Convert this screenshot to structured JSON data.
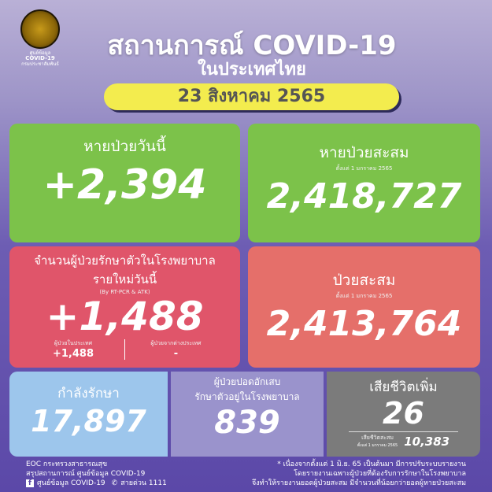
{
  "logo": {
    "line1": "ศูนย์ข้อมูล",
    "line2": "COVID-19",
    "line3": "กรมประชาสัมพันธ์"
  },
  "header": {
    "title": "สถานการณ์ COVID-19",
    "subtitle": "ในประเทศไทย",
    "date": "23 สิงหาคม 2565"
  },
  "recovered_today": {
    "label": "หายป่วยวันนี้",
    "value": "+2,394"
  },
  "recovered_total": {
    "label": "หายป่วยสะสม",
    "since": "ตั้งแต่ 1 มกราคม 2565",
    "value": "2,418,727"
  },
  "new_cases": {
    "label": "จำนวนผู้ป่วยรักษาตัวในโรงพยาบาล",
    "label2": "รายใหม่วันนี้",
    "method": "(By RT-PCR & ATK)",
    "value": "+1,488",
    "domestic_label": "ผู้ป่วยในประเทศ",
    "domestic_value": "+1,488",
    "foreign_label": "ผู้ป่วยจากต่างประเทศ",
    "foreign_value": "-"
  },
  "cases_total": {
    "label": "ป่วยสะสม",
    "since": "ตั้งแต่ 1 มกราคม 2565",
    "value": "2,413,764"
  },
  "treating": {
    "label": "กำลังรักษา",
    "value": "17,897"
  },
  "pneumonia": {
    "label": "ผู้ป่วยปอดอักเสบ",
    "label2": "รักษาตัวอยู่ในโรงพยาบาล",
    "value": "839"
  },
  "deaths": {
    "label": "เสียชีวิตเพิ่ม",
    "value": "26",
    "total_label": "เสียชีวิตสะสม",
    "total_since": "ตั้งแต่ 1 มกราคม 2565",
    "total_value": "10,383"
  },
  "footer": {
    "line1": "EOC กระทรวงสาธารณสุข",
    "line2": "สรุปสถานการณ์ ศูนย์ข้อมูล COVID-19",
    "facebook": "ศูนย์ข้อมูล COVID-19",
    "hotline": "สายด่วน 1111",
    "note1": "* เนื่องจากตั้งแต่ 1 มิ.ย. 65 เป็นต้นมา มีการปรับระบบรายงาน",
    "note2": "โดยรายงานเฉพาะผู้ป่วยที่ต้องรับการรักษาในโรงพยาบาล",
    "note3": "จึงทำให้รายงานยอดผู้ป่วยสะสม มีจำนวนที่น้อยกว่ายอดผู้หายป่วยสะสม"
  },
  "colors": {
    "green": "#7cc24a",
    "red": "#e0556a",
    "salmon": "#e56f6a",
    "blue": "#9dc6ec",
    "purple": "#9a93cc",
    "gray": "#7b7b7b",
    "yellow": "#f3ec4e"
  }
}
